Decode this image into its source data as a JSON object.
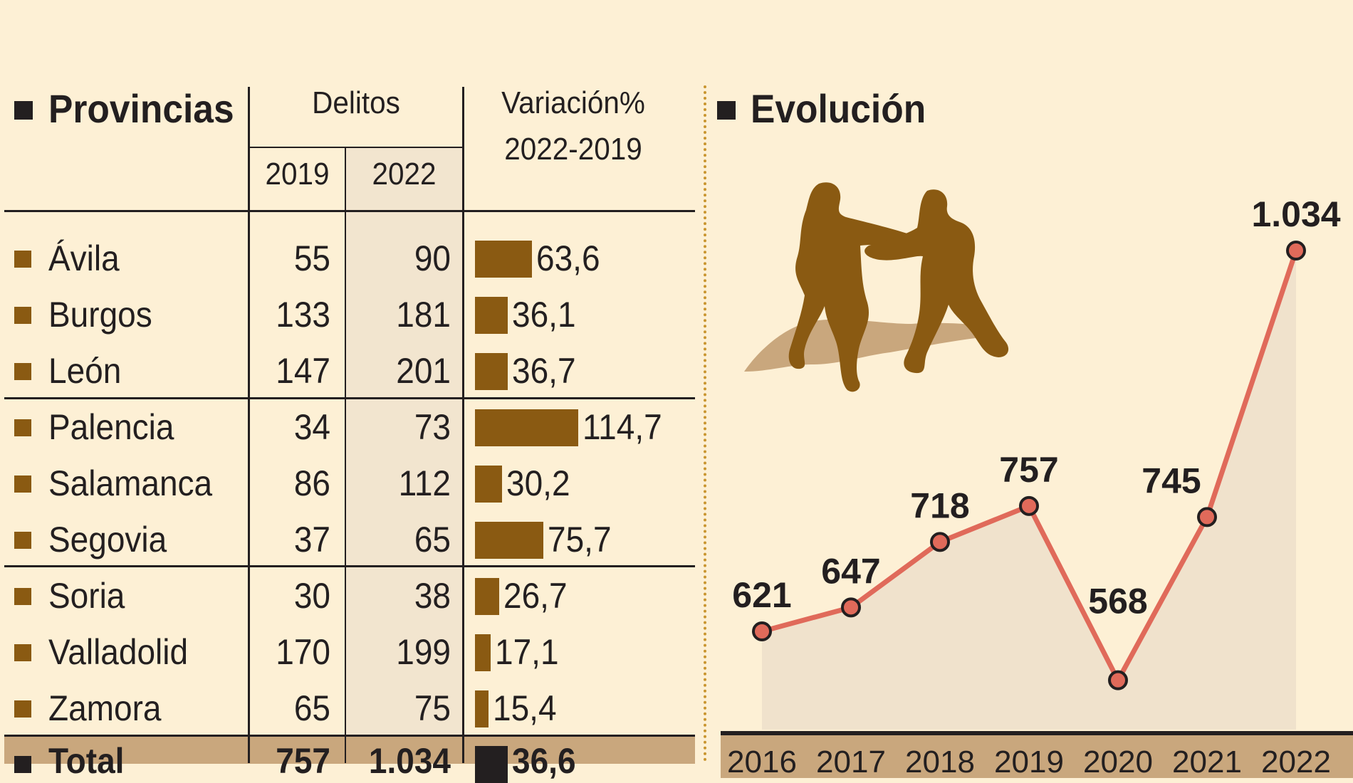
{
  "table": {
    "title": "Provincias",
    "col_group": "Delitos",
    "col_2019": "2019",
    "col_2022": "2022",
    "col_var_line1": "Variación%",
    "col_var_line2": "2022-2019",
    "rows": [
      {
        "name": "Ávila",
        "y2019": "55",
        "y2022": "90",
        "variation": "63,6",
        "var_value": 63.6
      },
      {
        "name": "Burgos",
        "y2019": "133",
        "y2022": "181",
        "variation": "36,1",
        "var_value": 36.1
      },
      {
        "name": "León",
        "y2019": "147",
        "y2022": "201",
        "variation": "36,7",
        "var_value": 36.7
      },
      {
        "name": "Palencia",
        "y2019": "34",
        "y2022": "73",
        "variation": "114,7",
        "var_value": 114.7
      },
      {
        "name": "Salamanca",
        "y2019": "86",
        "y2022": "112",
        "variation": "30,2",
        "var_value": 30.2
      },
      {
        "name": "Segovia",
        "y2019": "37",
        "y2022": "65",
        "variation": "75,7",
        "var_value": 75.7
      },
      {
        "name": "Soria",
        "y2019": "30",
        "y2022": "38",
        "variation": "26,7",
        "var_value": 26.7
      },
      {
        "name": "Valladolid",
        "y2019": "170",
        "y2022": "199",
        "variation": "17,1",
        "var_value": 17.1
      },
      {
        "name": "Zamora",
        "y2019": "65",
        "y2022": "75",
        "variation": "15,4",
        "var_value": 15.4
      }
    ],
    "total": {
      "name": "Total",
      "y2019": "757",
      "y2022": "1.034",
      "variation": "36,6",
      "var_value": 36.6
    }
  },
  "colors": {
    "background": "#fdf0d5",
    "bar": "#8a5a12",
    "line": "#e06a5a",
    "area": "#f0e2cc",
    "total_row": "#c9a77d",
    "col2022_shade": "#f2e5cf"
  },
  "chart_data": {
    "type": "line",
    "title": "Evolución",
    "x": [
      "2016",
      "2017",
      "2018",
      "2019",
      "2020",
      "2021",
      "2022"
    ],
    "y": [
      621,
      647,
      718,
      757,
      568,
      745,
      1034
    ],
    "labels": [
      "621",
      "647",
      "718",
      "757",
      "568",
      "745",
      "1.034"
    ],
    "ylim": [
      500,
      1100
    ],
    "grid": false
  },
  "illustration": {
    "icon": "fighting-figures-icon"
  }
}
